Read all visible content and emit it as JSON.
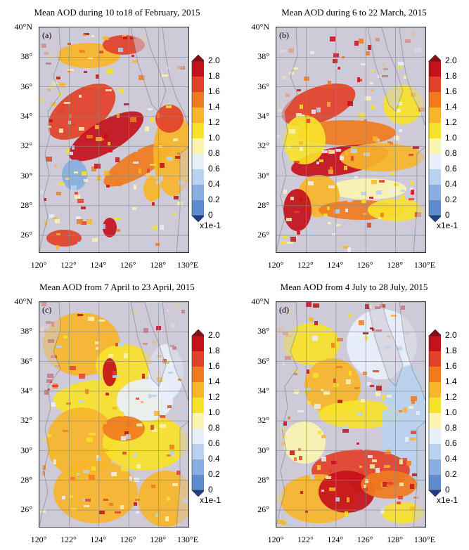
{
  "panels": [
    {
      "letter": "(a)",
      "title": "Mean AOD during 10 to18 of February, 2015"
    },
    {
      "letter": "(b)",
      "title": "Mean AOD during 6 to 22 March, 2015"
    },
    {
      "letter": "(c)",
      "title": "Mean AOD from 7 April to 23 April, 2015"
    },
    {
      "letter": "(d)",
      "title": "Mean AOD from 4 July to 28 July, 2015"
    }
  ],
  "lat_labels": [
    "40°N",
    "38°",
    "36°",
    "34°",
    "32°",
    "30°",
    "28°",
    "26°"
  ],
  "lon_labels": [
    "120°",
    "122°",
    "124°",
    "126°",
    "128°",
    "130°E"
  ],
  "colorbar": {
    "ticks": [
      "2.0",
      "1.8",
      "1.6",
      "1.4",
      "1.2",
      "1.0",
      "0.8",
      "0.6",
      "0.4",
      "0.2",
      "0"
    ],
    "unit": "x1e-1",
    "colors": [
      "#c4111a",
      "#e2412a",
      "#f07b1f",
      "#f7b52a",
      "#f7e22a",
      "#fbf5b0",
      "#e8f0fb",
      "#b9d2ef",
      "#88afe0",
      "#5e8ccd",
      "#3a65b3"
    ],
    "over_color": "#8e0b12",
    "under_color": "#1f3f8a"
  },
  "map_colors": {
    "land": "#cfcad8",
    "coast": "#666666",
    "grid": "#888888"
  }
}
